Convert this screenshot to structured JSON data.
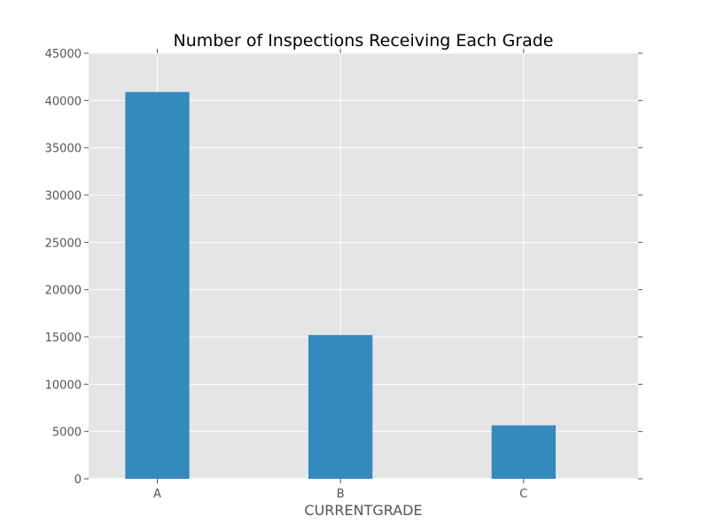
{
  "chart_data": {
    "type": "bar",
    "title": "Number of Inspections Receiving Each Grade",
    "xlabel": "CURRENTGRADE",
    "ylabel": "",
    "categories": [
      "A",
      "B",
      "C"
    ],
    "values": [
      40900,
      15200,
      5650
    ],
    "ylim": [
      0,
      45000
    ],
    "yticks": [
      0,
      5000,
      10000,
      15000,
      20000,
      25000,
      30000,
      35000,
      40000,
      45000
    ],
    "grid": true,
    "legend": "none",
    "colors": {
      "bar": "#348abd",
      "plot_background": "#e5e5e5",
      "grid": "#ffffff"
    }
  }
}
